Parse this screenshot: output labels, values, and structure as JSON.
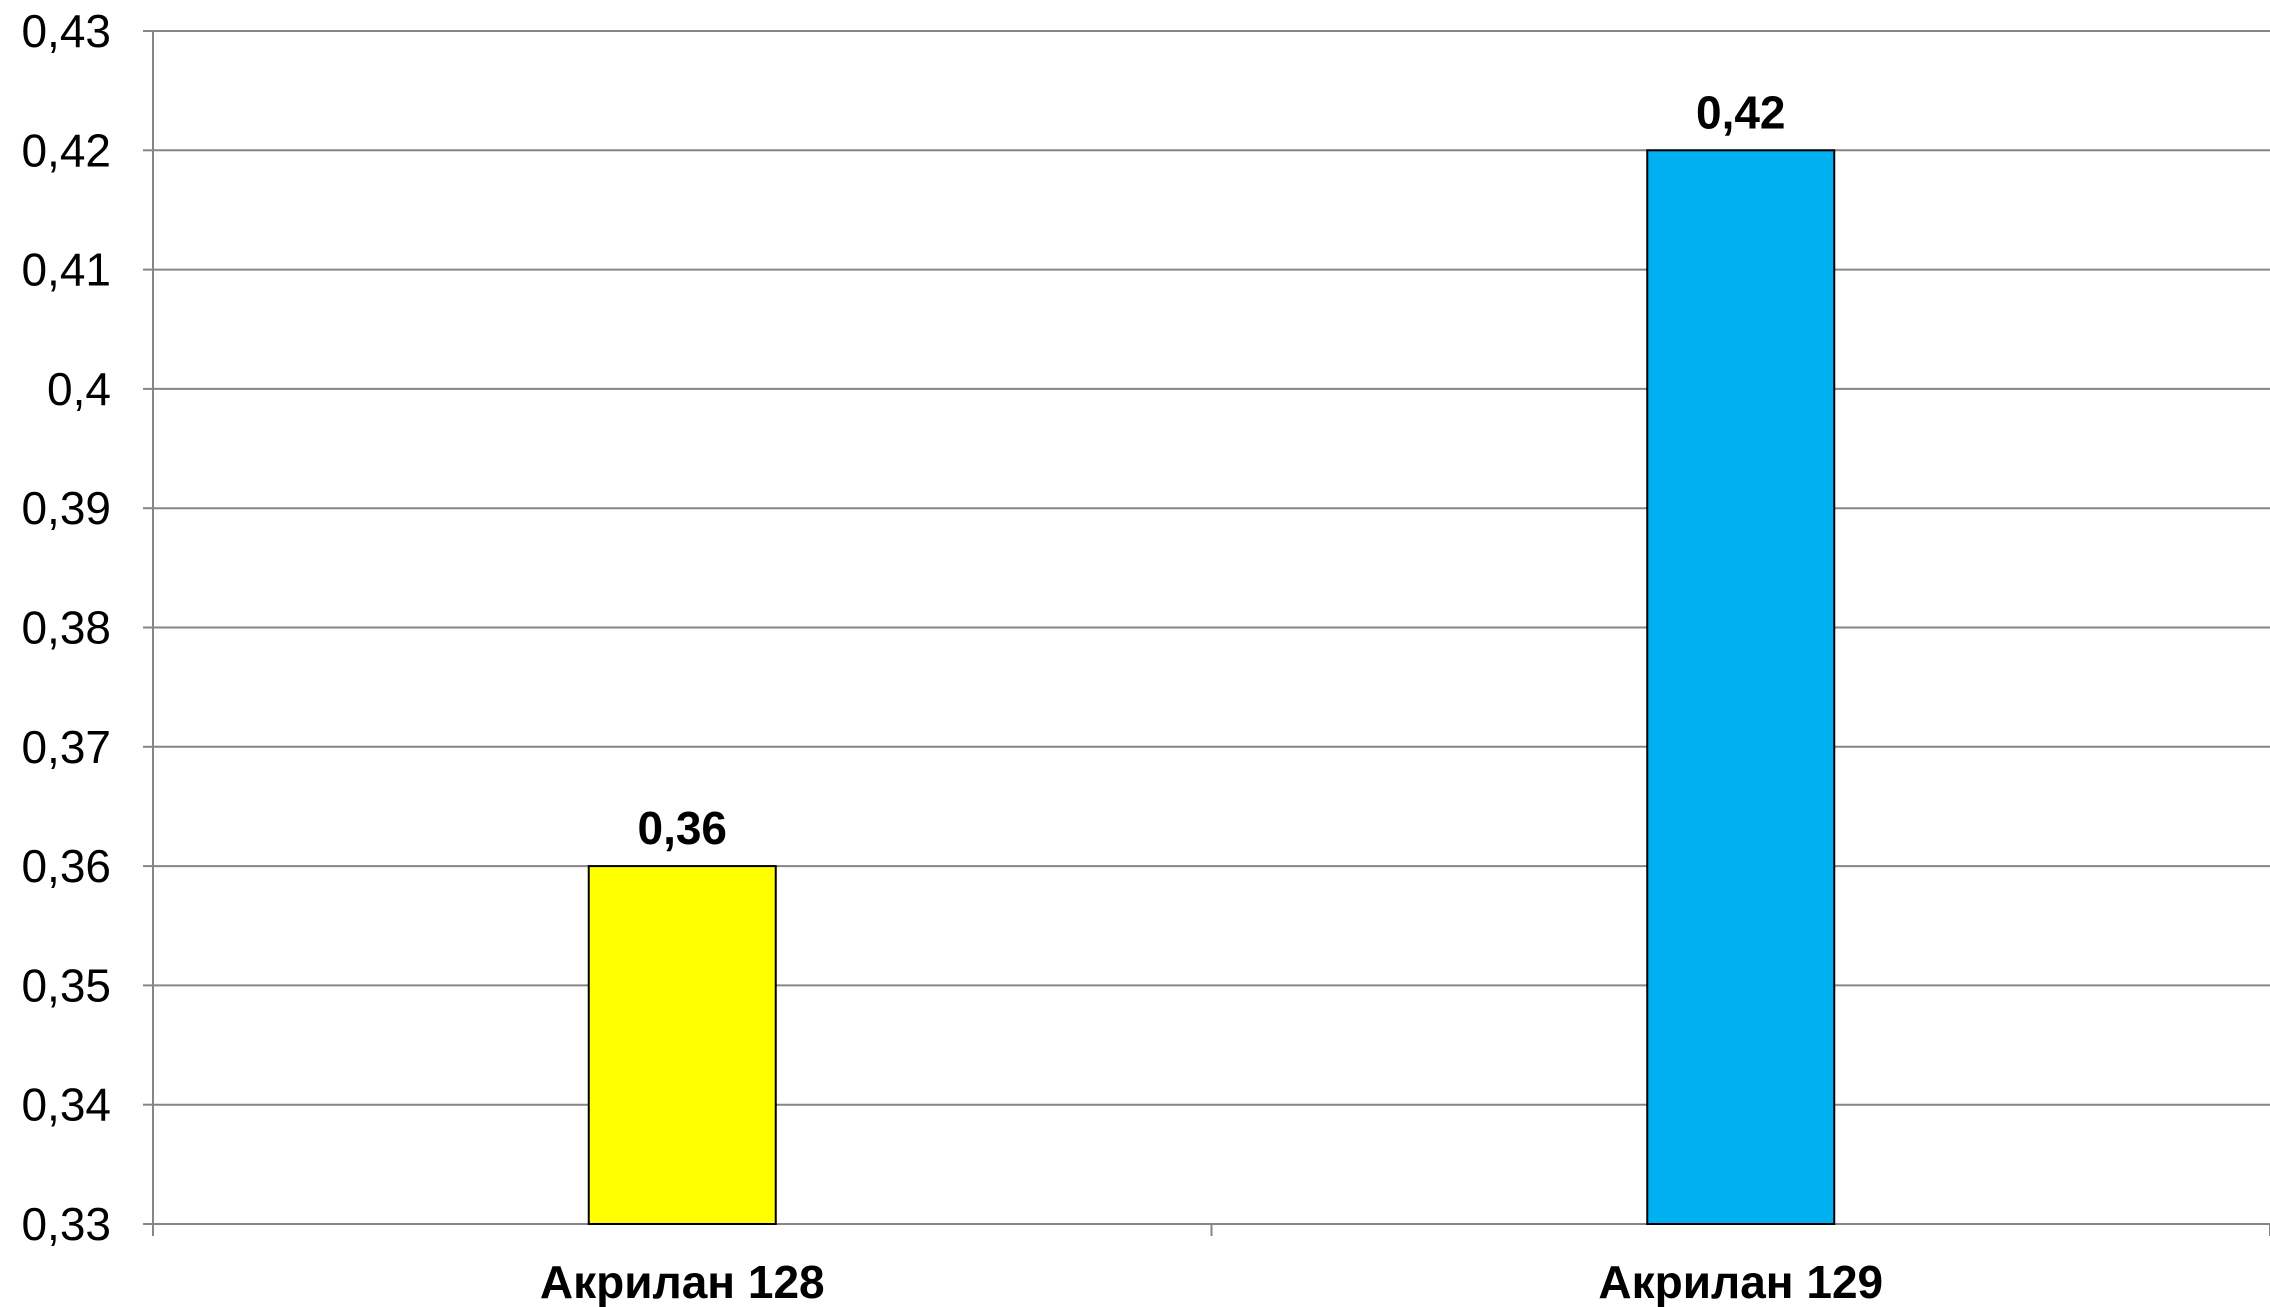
{
  "chart_data": {
    "type": "bar",
    "categories": [
      "Акрилан 128",
      "Акрилан 129"
    ],
    "values": [
      0.36,
      0.42
    ],
    "value_labels": [
      "0,36",
      "0,42"
    ],
    "colors": [
      "#FFFF00",
      "#00B0F0"
    ],
    "ylim": [
      0.33,
      0.43
    ],
    "yticks": [
      0.33,
      0.34,
      0.35,
      0.36,
      0.37,
      0.38,
      0.39,
      0.4,
      0.41,
      0.42,
      0.43
    ],
    "ytick_labels": [
      "0,33",
      "0,34",
      "0,35",
      "0,36",
      "0,37",
      "0,38",
      "0,39",
      "0,4",
      "0,41",
      "0,42",
      "0,43"
    ],
    "grid": true,
    "title": "",
    "xlabel": "",
    "ylabel": ""
  }
}
